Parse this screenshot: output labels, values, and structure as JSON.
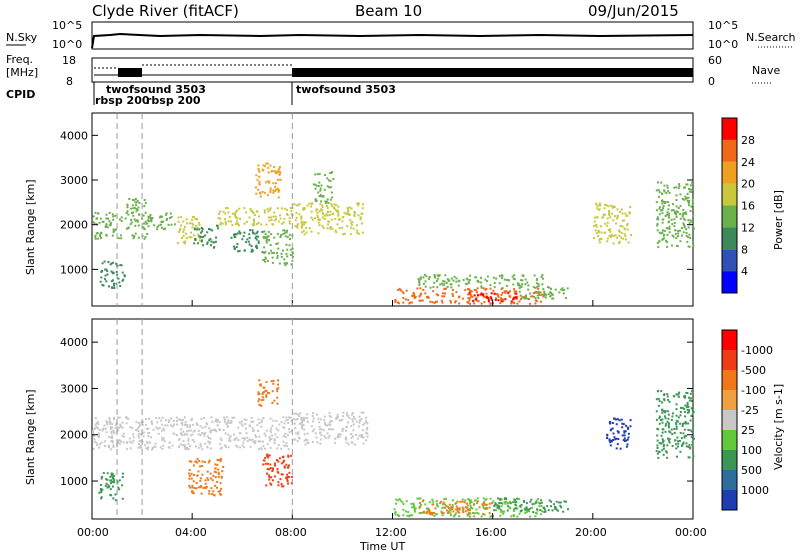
{
  "header": {
    "station": "Clyde River (fitACF)",
    "beam": "Beam 10",
    "date": "09/Jun/2015"
  },
  "top_panels": {
    "nsky_label": "N.Sky",
    "nsky_ticks": [
      "10^5",
      "10^0"
    ],
    "nsearch_label": "N.Search",
    "nsearch_ticks": [
      "10^5",
      "10^0"
    ],
    "freq_label_1": "Freq.",
    "freq_label_2": "[MHz]",
    "freq_ticks": [
      "18",
      "8"
    ],
    "nave_label": "Nave",
    "nave_ticks": [
      "60",
      "0"
    ],
    "cpid_label": "CPID",
    "cpid_modes": [
      {
        "name": "twofsound 3503",
        "start": 1.0
      },
      {
        "name": "rbsp 200",
        "start": 0.0
      },
      {
        "name": "rbsp 200",
        "start": 2.0
      },
      {
        "name": "twofsound 3503",
        "start": 8.0
      }
    ]
  },
  "x_axis": {
    "label": "Time UT",
    "ticks": [
      "00:00",
      "04:00",
      "08:00",
      "12:00",
      "16:00",
      "20:00",
      "00:00"
    ]
  },
  "chart_data": [
    {
      "type": "heatmap",
      "title": "Power",
      "ylabel": "Slant Range [km]",
      "xlabel": "Time UT",
      "xlim_hours": [
        0,
        24
      ],
      "ylim_km": [
        180,
        4500
      ],
      "yticks": [
        1000,
        2000,
        3000,
        4000
      ],
      "colorbar": {
        "label": "Power [dB]",
        "ticks": [
          "4",
          "8",
          "12",
          "16",
          "20",
          "24",
          "28"
        ],
        "colors": [
          "#0000ff",
          "#2f50b4",
          "#3c8a5a",
          "#6ab04c",
          "#c8c83c",
          "#f0a020",
          "#f06818",
          "#ff0000"
        ]
      },
      "regions": [
        {
          "t0": 0.0,
          "t1": 1.2,
          "r0": 1700,
          "r1": 2300,
          "level": 3
        },
        {
          "t0": 0.3,
          "t1": 1.3,
          "r0": 600,
          "r1": 1200,
          "level": 2
        },
        {
          "t0": 1.3,
          "t1": 2.2,
          "r0": 1700,
          "r1": 2600,
          "level": 3
        },
        {
          "t0": 2.2,
          "t1": 3.4,
          "r0": 1900,
          "r1": 2300,
          "level": 3
        },
        {
          "t0": 3.4,
          "t1": 4.3,
          "r0": 1600,
          "r1": 2200,
          "level": 4
        },
        {
          "t0": 4.0,
          "t1": 5.0,
          "r0": 1500,
          "r1": 2000,
          "level": 2
        },
        {
          "t0": 5.5,
          "t1": 6.8,
          "r0": 1400,
          "r1": 1900,
          "level": 2
        },
        {
          "t0": 5.0,
          "t1": 8.0,
          "r0": 2000,
          "r1": 2400,
          "level": 4
        },
        {
          "t0": 6.5,
          "t1": 7.5,
          "r0": 2600,
          "r1": 3400,
          "level": 5
        },
        {
          "t0": 6.8,
          "t1": 8.0,
          "r0": 1100,
          "r1": 1900,
          "level": 3
        },
        {
          "t0": 8.0,
          "t1": 10.8,
          "r0": 1800,
          "r1": 2500,
          "level": 4
        },
        {
          "t0": 8.8,
          "t1": 9.6,
          "r0": 2500,
          "r1": 3200,
          "level": 3
        },
        {
          "t0": 13.0,
          "t1": 18.0,
          "r0": 600,
          "r1": 900,
          "level": 3
        },
        {
          "t0": 12.0,
          "t1": 18.0,
          "r0": 250,
          "r1": 600,
          "level": 6
        },
        {
          "t0": 15.0,
          "t1": 17.0,
          "r0": 300,
          "r1": 500,
          "level": 7
        },
        {
          "t0": 17.0,
          "t1": 19.0,
          "r0": 350,
          "r1": 650,
          "level": 3
        },
        {
          "t0": 20.0,
          "t1": 21.5,
          "r0": 1600,
          "r1": 2500,
          "level": 4
        },
        {
          "t0": 22.5,
          "t1": 24.0,
          "r0": 1500,
          "r1": 3000,
          "level": 3
        }
      ]
    },
    {
      "type": "heatmap",
      "title": "Velocity",
      "ylabel": "Slant Range [km]",
      "xlabel": "Time UT",
      "xlim_hours": [
        0,
        24
      ],
      "ylim_km": [
        180,
        4500
      ],
      "yticks": [
        1000,
        2000,
        3000,
        4000
      ],
      "colorbar": {
        "label": "Velocity [m s-1]",
        "ticks": [
          "1000",
          "500",
          "100",
          "25",
          "-25",
          "-100",
          "-500",
          "-1000"
        ],
        "colors": [
          "#1e3cb4",
          "#2f6e9a",
          "#3c9654",
          "#64c83c",
          "#c8c8c8",
          "#f0a040",
          "#f07818",
          "#f03c14",
          "#ff0000"
        ]
      },
      "regions": [
        {
          "t0": 0.0,
          "t1": 8.0,
          "r0": 1700,
          "r1": 2400,
          "level": 4
        },
        {
          "t0": 8.0,
          "t1": 11.0,
          "r0": 1800,
          "r1": 2500,
          "level": 4
        },
        {
          "t0": 0.2,
          "t1": 1.2,
          "r0": 600,
          "r1": 1200,
          "level": 2
        },
        {
          "t0": 3.8,
          "t1": 5.2,
          "r0": 700,
          "r1": 1500,
          "level": 6
        },
        {
          "t0": 6.8,
          "t1": 8.0,
          "r0": 900,
          "r1": 1600,
          "level": 7
        },
        {
          "t0": 6.6,
          "t1": 7.4,
          "r0": 2600,
          "r1": 3200,
          "level": 6
        },
        {
          "t0": 12.0,
          "t1": 18.0,
          "r0": 250,
          "r1": 650,
          "level": 3
        },
        {
          "t0": 13.0,
          "t1": 16.0,
          "r0": 300,
          "r1": 600,
          "level": 6
        },
        {
          "t0": 16.0,
          "t1": 19.0,
          "r0": 350,
          "r1": 650,
          "level": 2
        },
        {
          "t0": 20.5,
          "t1": 21.5,
          "r0": 1700,
          "r1": 2400,
          "level": 0
        },
        {
          "t0": 22.5,
          "t1": 24.0,
          "r0": 1500,
          "r1": 3000,
          "level": 2
        }
      ]
    }
  ]
}
